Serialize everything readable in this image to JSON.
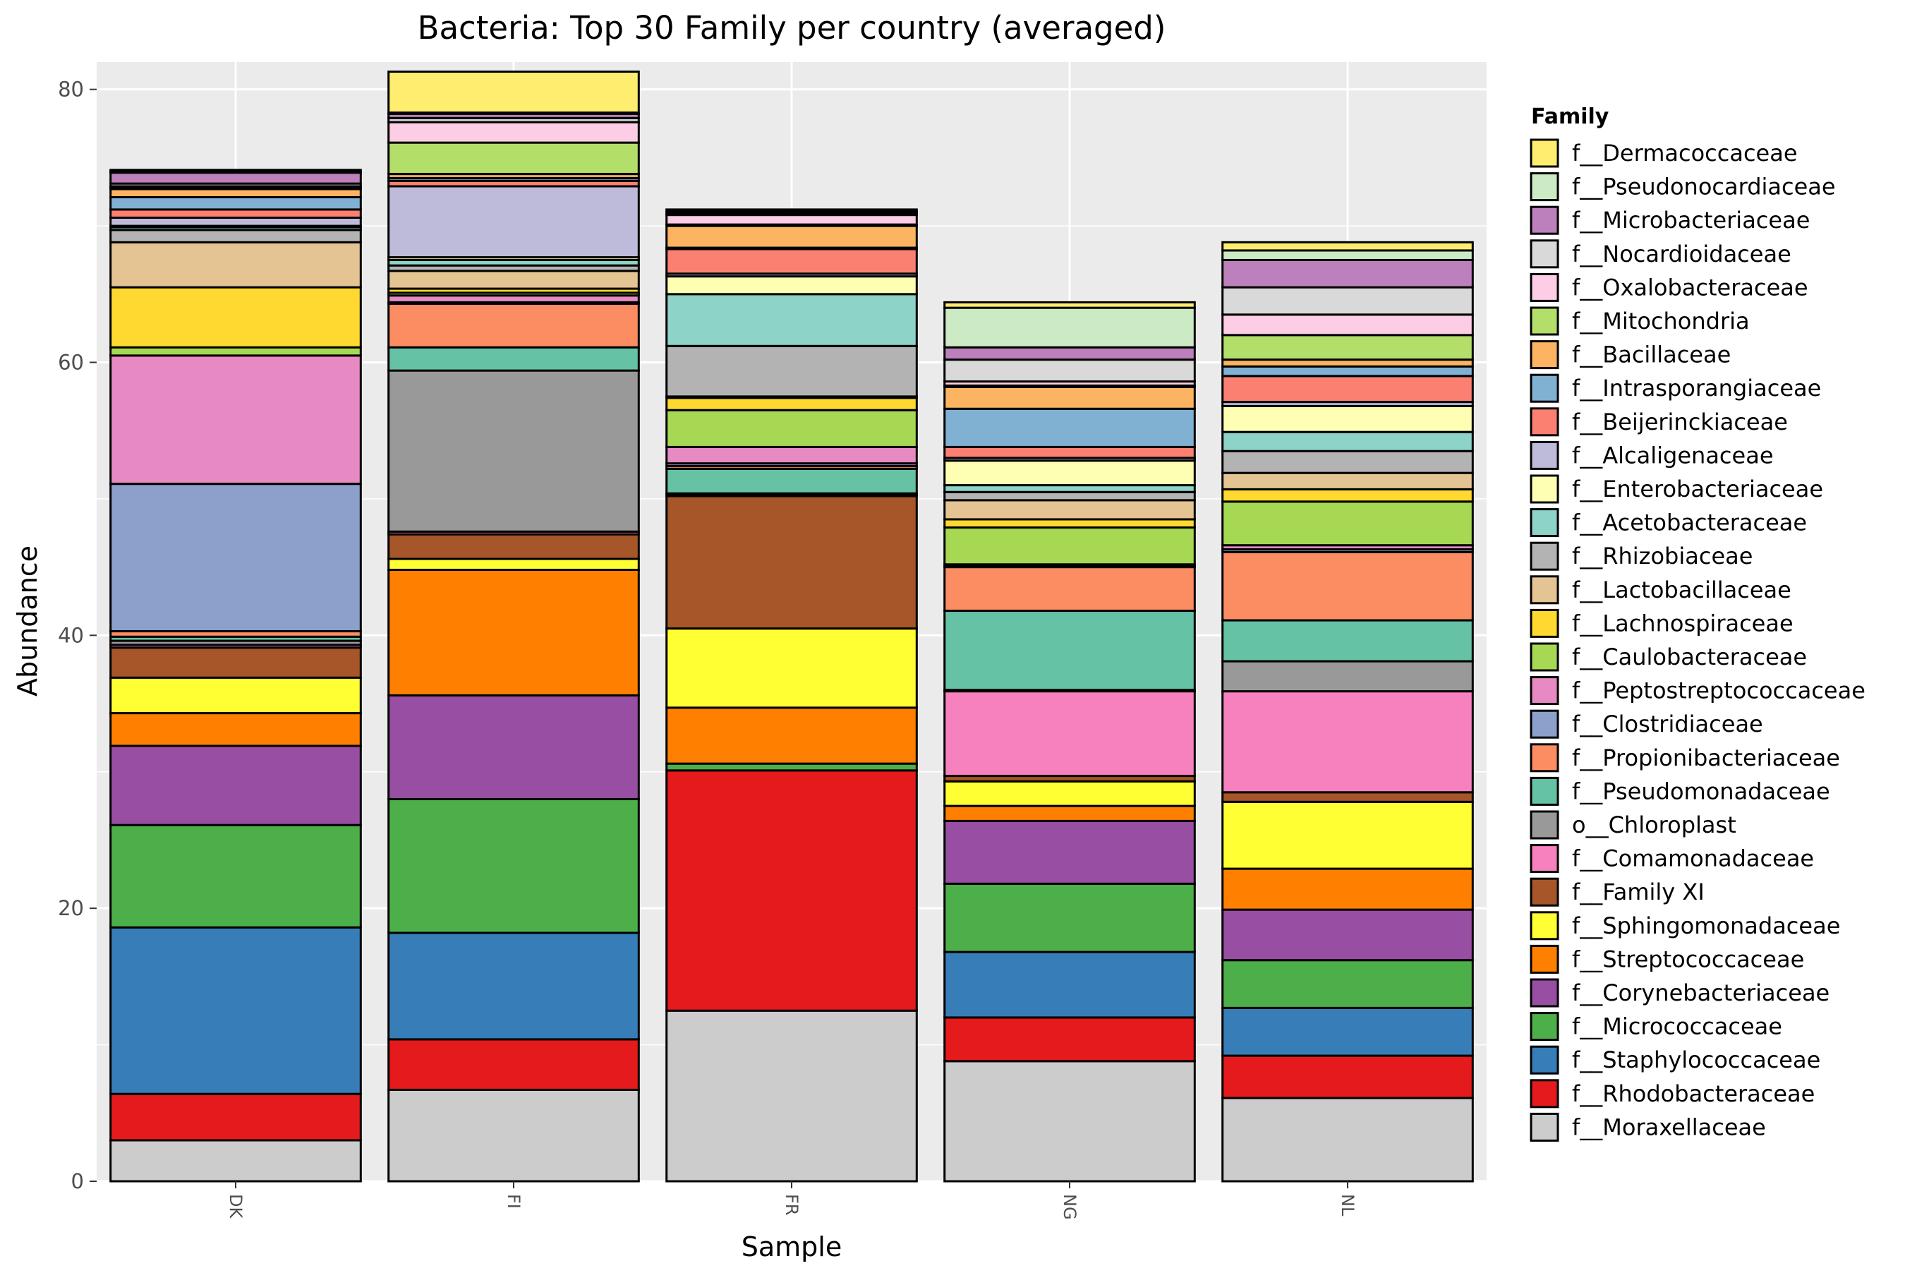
{
  "chart_data": {
    "type": "bar",
    "stacked": true,
    "title": "Bacteria: Top 30 Family per country (averaged)",
    "xlabel": "Sample",
    "ylabel": "Abundance",
    "ylim": [
      0,
      82
    ],
    "yticks": [
      0,
      20,
      40,
      60,
      80
    ],
    "grid": true,
    "legend_position": "right",
    "legend_title": "Family",
    "categories": [
      "DK",
      "FI",
      "FR",
      "NG",
      "NL"
    ],
    "series": [
      {
        "name": "f__Moraxellaceae",
        "color": "#CCCCCC",
        "values": [
          3.0,
          6.7,
          12.5,
          8.8,
          6.1
        ]
      },
      {
        "name": "f__Rhodobacteraceae",
        "color": "#E41A1C",
        "values": [
          3.4,
          3.7,
          17.6,
          3.2,
          3.1
        ]
      },
      {
        "name": "f__Staphylococcaceae",
        "color": "#377EB8",
        "values": [
          12.2,
          7.8,
          0.0,
          4.8,
          3.5
        ]
      },
      {
        "name": "f__Micrococcaceae",
        "color": "#4DAF4A",
        "values": [
          7.5,
          9.8,
          0.5,
          5.0,
          3.5
        ]
      },
      {
        "name": "f__Corynebacteriaceae",
        "color": "#984EA3",
        "values": [
          5.8,
          7.6,
          0.0,
          4.6,
          3.7
        ]
      },
      {
        "name": "f__Streptococcaceae",
        "color": "#FF7F00",
        "values": [
          2.4,
          9.2,
          4.1,
          1.1,
          3.0
        ]
      },
      {
        "name": "f__Sphingomonadaceae",
        "color": "#FFFF33",
        "values": [
          2.6,
          0.8,
          5.8,
          1.8,
          4.9
        ]
      },
      {
        "name": "f__Family XI",
        "color": "#A65628",
        "values": [
          2.2,
          1.8,
          9.7,
          0.4,
          0.7
        ]
      },
      {
        "name": "f__Comamonadaceae",
        "color": "#F781BF",
        "values": [
          0.2,
          0.2,
          0.1,
          6.2,
          7.4
        ]
      },
      {
        "name": "o__Chloroplast",
        "color": "#999999",
        "values": [
          0.3,
          11.8,
          0.1,
          0.1,
          2.2
        ]
      },
      {
        "name": "f__Pseudomonadaceae",
        "color": "#66C2A5",
        "values": [
          0.3,
          1.7,
          1.8,
          5.8,
          3.0
        ]
      },
      {
        "name": "f__Propionibacteriaceae",
        "color": "#FC8D62",
        "values": [
          0.4,
          3.2,
          0.2,
          3.2,
          5.0
        ]
      },
      {
        "name": "f__Clostridiaceae",
        "color": "#8DA0CB",
        "values": [
          10.8,
          0.1,
          0.2,
          0.1,
          0.2
        ]
      },
      {
        "name": "f__Peptostreptococcaceae",
        "color": "#E78AC3",
        "values": [
          9.4,
          0.5,
          1.2,
          0.1,
          0.3
        ]
      },
      {
        "name": "f__Caulobacteraceae",
        "color": "#A6D854",
        "values": [
          0.6,
          0.2,
          2.7,
          2.7,
          3.2
        ]
      },
      {
        "name": "f__Lachnospiraceae",
        "color": "#FFD92F",
        "values": [
          4.4,
          0.3,
          0.9,
          0.6,
          0.9
        ]
      },
      {
        "name": "f__Lactobacillaceae",
        "color": "#E5C494",
        "values": [
          3.3,
          1.3,
          0.1,
          1.4,
          1.2
        ]
      },
      {
        "name": "f__Rhizobiaceae",
        "color": "#B3B3B3",
        "values": [
          0.9,
          0.4,
          3.7,
          0.6,
          1.6
        ]
      },
      {
        "name": "f__Acetobacteraceae",
        "color": "#8DD3C7",
        "values": [
          0.2,
          0.4,
          3.8,
          0.5,
          1.4
        ]
      },
      {
        "name": "f__Enterobacteriaceae",
        "color": "#FFFFB3",
        "values": [
          0.1,
          0.2,
          1.3,
          1.8,
          1.9
        ]
      },
      {
        "name": "f__Alcaligenaceae",
        "color": "#BEBADA",
        "values": [
          0.6,
          5.2,
          0.2,
          0.2,
          0.3
        ]
      },
      {
        "name": "f__Beijerinckiaceae",
        "color": "#FB8072",
        "values": [
          0.6,
          0.4,
          1.8,
          0.8,
          1.9
        ]
      },
      {
        "name": "f__Intrasporangiaceae",
        "color": "#80B1D3",
        "values": [
          0.9,
          0.2,
          0.1,
          2.8,
          0.7
        ]
      },
      {
        "name": "f__Bacillaceae",
        "color": "#FDB462",
        "values": [
          0.6,
          0.3,
          1.6,
          1.6,
          0.5
        ]
      },
      {
        "name": "f__Mitochondria",
        "color": "#B3DE69",
        "values": [
          0.1,
          2.3,
          0.1,
          0.1,
          1.8
        ]
      },
      {
        "name": "f__Oxalobacteraceae",
        "color": "#FCCDE5",
        "values": [
          0.1,
          1.5,
          0.7,
          0.3,
          1.5
        ]
      },
      {
        "name": "f__Nocardioidaceae",
        "color": "#D9D9D9",
        "values": [
          0.2,
          0.3,
          0.1,
          1.6,
          2.0
        ]
      },
      {
        "name": "f__Microbacteriaceae",
        "color": "#BC80BD",
        "values": [
          0.8,
          0.3,
          0.1,
          0.9,
          2.0
        ]
      },
      {
        "name": "f__Pseudonocardiaceae",
        "color": "#CCEBC5",
        "values": [
          0.1,
          0.1,
          0.1,
          2.9,
          0.7
        ]
      },
      {
        "name": "f__Dermacoccaceae",
        "color": "#FFED6F",
        "values": [
          0.1,
          3.0,
          0.1,
          0.4,
          0.6
        ]
      }
    ]
  }
}
